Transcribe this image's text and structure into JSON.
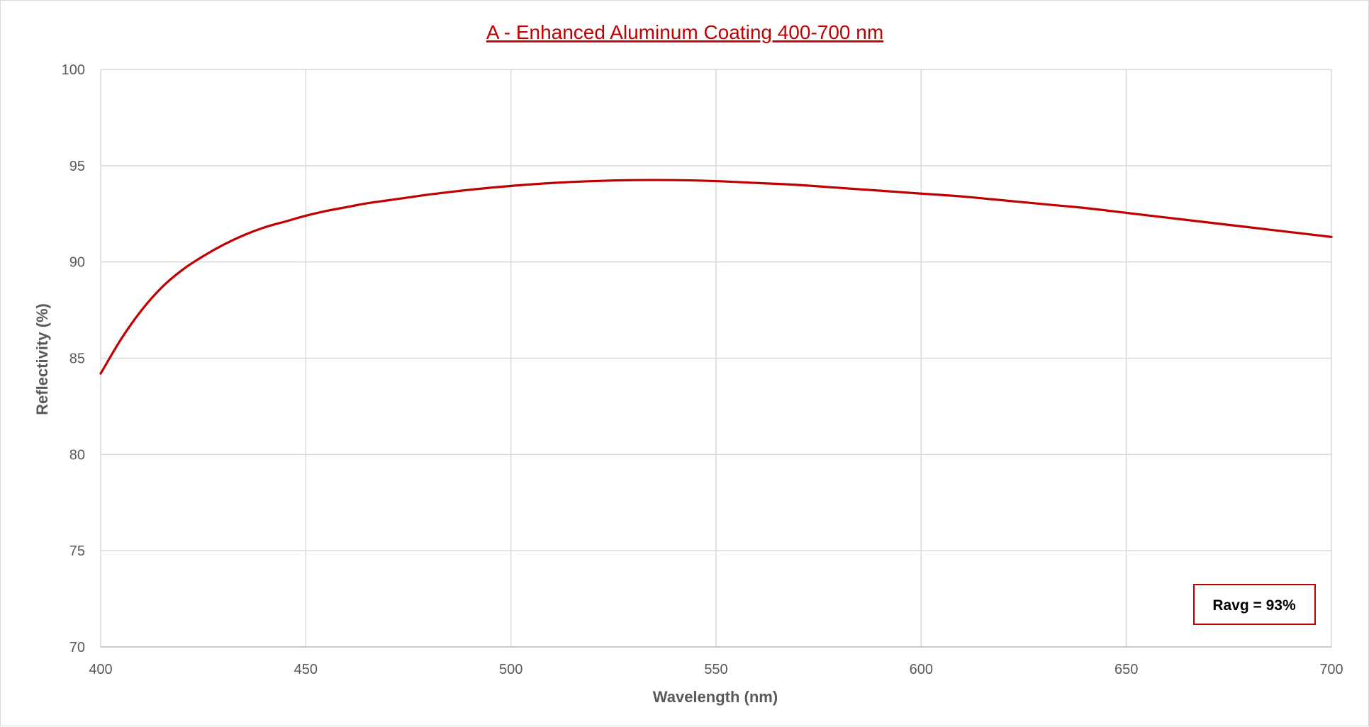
{
  "chart_data": {
    "type": "line",
    "title": "A - Enhanced Aluminum Coating 400-700 nm",
    "xlabel": "Wavelength (nm)",
    "ylabel": "Reflectivity (%)",
    "xlim": [
      400,
      700
    ],
    "ylim": [
      70,
      100
    ],
    "x_ticks": [
      400,
      450,
      500,
      550,
      600,
      650,
      700
    ],
    "y_ticks": [
      70,
      75,
      80,
      85,
      90,
      95,
      100
    ],
    "grid": true,
    "legend": "none",
    "series": [
      {
        "color": "#c00000",
        "x": [
          400,
          405,
          410,
          415,
          420,
          425,
          430,
          435,
          440,
          445,
          450,
          455,
          460,
          465,
          470,
          475,
          480,
          490,
          500,
          510,
          520,
          530,
          540,
          550,
          560,
          570,
          580,
          590,
          600,
          610,
          620,
          630,
          640,
          650,
          660,
          670,
          680,
          690,
          700
        ],
        "y": [
          84.2,
          86.0,
          87.5,
          88.7,
          89.6,
          90.3,
          90.9,
          91.4,
          91.8,
          92.1,
          92.4,
          92.65,
          92.85,
          93.05,
          93.2,
          93.35,
          93.5,
          93.75,
          93.95,
          94.1,
          94.2,
          94.25,
          94.25,
          94.2,
          94.1,
          94.0,
          93.85,
          93.7,
          93.55,
          93.4,
          93.2,
          93.0,
          92.8,
          92.55,
          92.3,
          92.05,
          91.8,
          91.55,
          91.3
        ]
      }
    ],
    "annotation": {
      "text": "Ravg = 93%",
      "border_color": "#c00000"
    }
  }
}
